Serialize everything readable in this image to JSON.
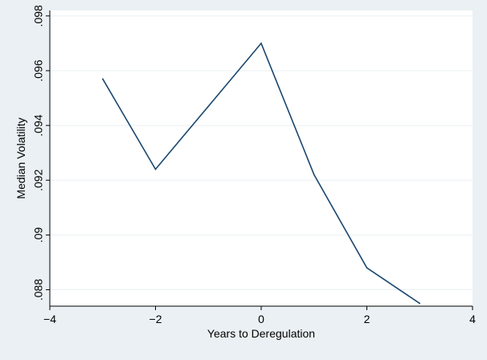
{
  "chart_data": {
    "type": "line",
    "title": "",
    "xlabel": "Years to Deregulation",
    "ylabel": "Median Volatility",
    "xlim": [
      -4,
      4
    ],
    "ylim": [
      0.0874,
      0.0982
    ],
    "x_ticks": [
      -4,
      -2,
      0,
      2,
      4
    ],
    "x_tick_labels": [
      "−4",
      "−2",
      "0",
      "2",
      "4"
    ],
    "y_ticks": [
      0.088,
      0.09,
      0.092,
      0.094,
      0.096,
      0.098
    ],
    "y_tick_labels": [
      ".088",
      ".09",
      ".092",
      ".094",
      ".096",
      ".098"
    ],
    "grid": true,
    "legend": "none",
    "series": [
      {
        "x": [
          -3,
          -2,
          -1,
          0,
          1,
          2,
          3
        ],
        "y": [
          0.0957,
          0.0924,
          0.0947,
          0.097,
          0.0922,
          0.0888,
          0.0875
        ],
        "color": "#1a476f"
      }
    ],
    "colors": {
      "background": "#eaf0f3",
      "plot_area": "#ffffff",
      "grid": "#eaf0f3",
      "axis": "#000000",
      "line": "#1a476f"
    }
  }
}
